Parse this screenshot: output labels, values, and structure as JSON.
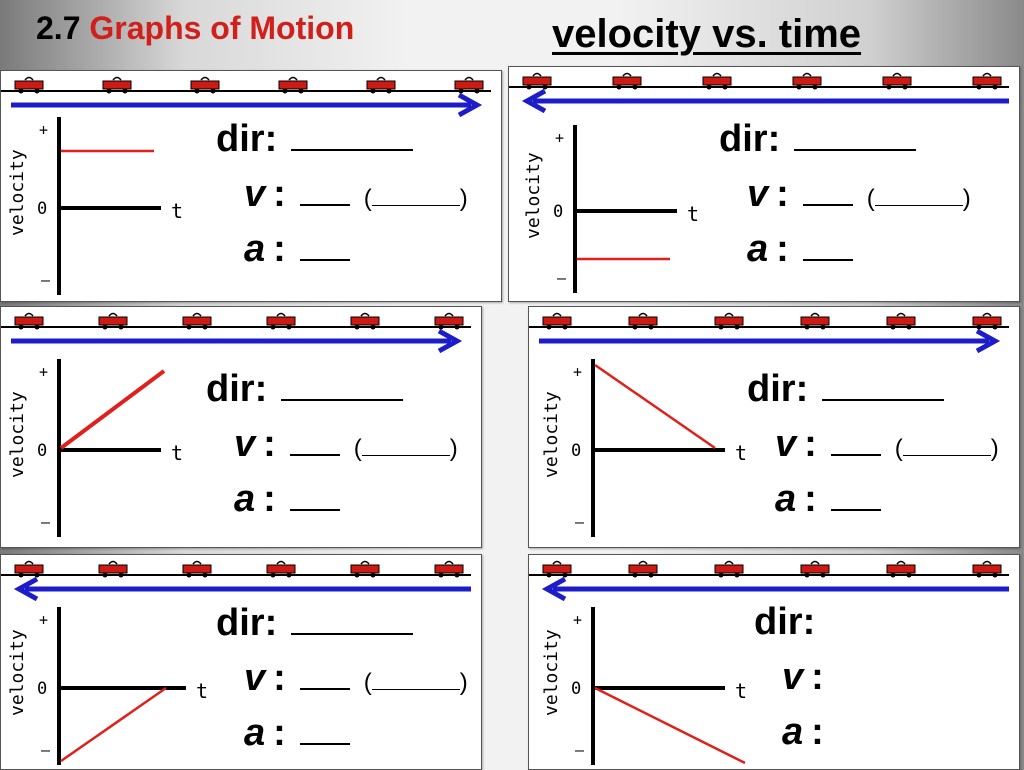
{
  "header": {
    "section_number": "2.7",
    "section_title": "Graphs of Motion",
    "heading": "velocity vs. time"
  },
  "axis": {
    "y_label": "velocity",
    "plus": "+",
    "zero": "0",
    "minus": "–",
    "t_label": "t"
  },
  "labels": {
    "dir": "dir",
    "v": "v",
    "a": "a",
    "colon": ":",
    "open_paren": "(",
    "close_paren": ")"
  },
  "colors": {
    "arrow": "#1c1cc8",
    "line": "#e0201c",
    "axis": "#000000",
    "cart": "#cc1a14"
  },
  "panels": [
    {
      "id": "panel-1",
      "arrow_direction": "right",
      "velocity_line": "constant-positive",
      "blanks": true
    },
    {
      "id": "panel-2",
      "arrow_direction": "left",
      "velocity_line": "constant-negative",
      "blanks": true
    },
    {
      "id": "panel-3",
      "arrow_direction": "right",
      "velocity_line": "increasing-from-zero",
      "blanks": true
    },
    {
      "id": "panel-4",
      "arrow_direction": "right",
      "velocity_line": "decreasing-to-zero",
      "blanks": true
    },
    {
      "id": "panel-5",
      "arrow_direction": "left",
      "velocity_line": "negative-approaching-zero",
      "blanks": true
    },
    {
      "id": "panel-6",
      "arrow_direction": "left",
      "velocity_line": "zero-becoming-negative",
      "blanks": false
    }
  ]
}
